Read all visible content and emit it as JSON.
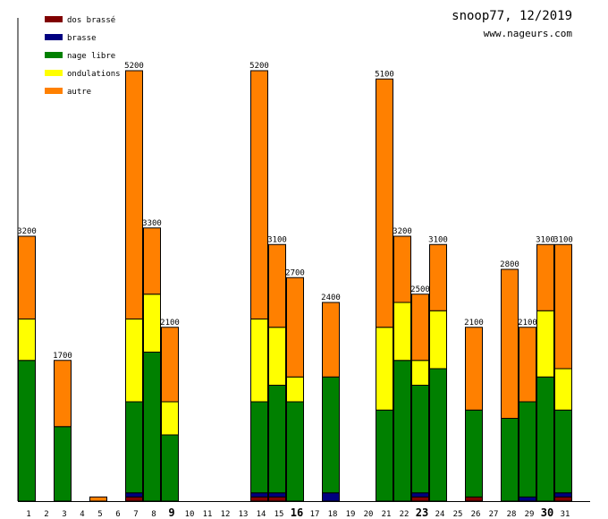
{
  "chart_data": {
    "type": "bar",
    "stacked": true,
    "title": "snoop77, 12/2019",
    "subtitle": "www.nageurs.com",
    "xlabel": "",
    "ylabel": "",
    "ylim": [
      0,
      5200
    ],
    "legend_position": "top-left",
    "categories": [
      "1",
      "2",
      "3",
      "4",
      "5",
      "6",
      "7",
      "8",
      "9",
      "10",
      "11",
      "12",
      "13",
      "14",
      "15",
      "16",
      "17",
      "18",
      "19",
      "20",
      "21",
      "22",
      "23",
      "24",
      "25",
      "26",
      "27",
      "28",
      "29",
      "30",
      "31"
    ],
    "bold_categories": [
      "9",
      "16",
      "23",
      "30"
    ],
    "totals": [
      3200,
      0,
      1700,
      0,
      50,
      0,
      5200,
      3300,
      2100,
      0,
      0,
      0,
      0,
      5200,
      3100,
      2700,
      0,
      2400,
      0,
      0,
      5100,
      3200,
      2500,
      3100,
      0,
      2100,
      0,
      2800,
      2100,
      3100,
      3100
    ],
    "total_labels": [
      "3200",
      "",
      "1700",
      "",
      "",
      "",
      "5200",
      "3300",
      "2100",
      "",
      "",
      "",
      "",
      "5200",
      "3100",
      "2700",
      "",
      "2400",
      "",
      "",
      "5100",
      "3200",
      "2500",
      "3100",
      "",
      "2100",
      "",
      "2800",
      "2100",
      "3100",
      "3100"
    ],
    "series": [
      {
        "name": "dos brassé",
        "color": "#800000",
        "values": [
          0,
          0,
          0,
          0,
          0,
          0,
          50,
          0,
          0,
          0,
          0,
          0,
          0,
          50,
          50,
          0,
          0,
          0,
          0,
          0,
          0,
          0,
          50,
          0,
          0,
          50,
          0,
          0,
          0,
          0,
          50
        ]
      },
      {
        "name": "brasse",
        "color": "#000080",
        "values": [
          0,
          0,
          0,
          0,
          0,
          0,
          50,
          0,
          0,
          0,
          0,
          0,
          0,
          50,
          50,
          0,
          0,
          100,
          0,
          0,
          0,
          0,
          50,
          0,
          0,
          0,
          0,
          0,
          50,
          0,
          50
        ]
      },
      {
        "name": "nage libre",
        "color": "#008000",
        "values": [
          1700,
          0,
          900,
          0,
          0,
          0,
          1100,
          1800,
          800,
          0,
          0,
          0,
          0,
          1100,
          1300,
          1200,
          0,
          1400,
          0,
          0,
          1100,
          1700,
          1300,
          1600,
          0,
          1050,
          0,
          1000,
          1150,
          1500,
          1000
        ]
      },
      {
        "name": "ondulations",
        "color": "#ffff00",
        "values": [
          500,
          0,
          0,
          0,
          0,
          0,
          1000,
          700,
          400,
          0,
          0,
          0,
          0,
          1000,
          700,
          300,
          0,
          0,
          0,
          0,
          1000,
          700,
          300,
          700,
          0,
          0,
          0,
          0,
          0,
          800,
          500
        ]
      },
      {
        "name": "autre",
        "color": "#ff8000",
        "values": [
          1000,
          0,
          800,
          0,
          50,
          0,
          3000,
          800,
          900,
          0,
          0,
          0,
          0,
          3000,
          1000,
          1200,
          0,
          900,
          0,
          0,
          3000,
          800,
          800,
          800,
          0,
          1000,
          0,
          1800,
          900,
          800,
          1500
        ]
      }
    ]
  }
}
